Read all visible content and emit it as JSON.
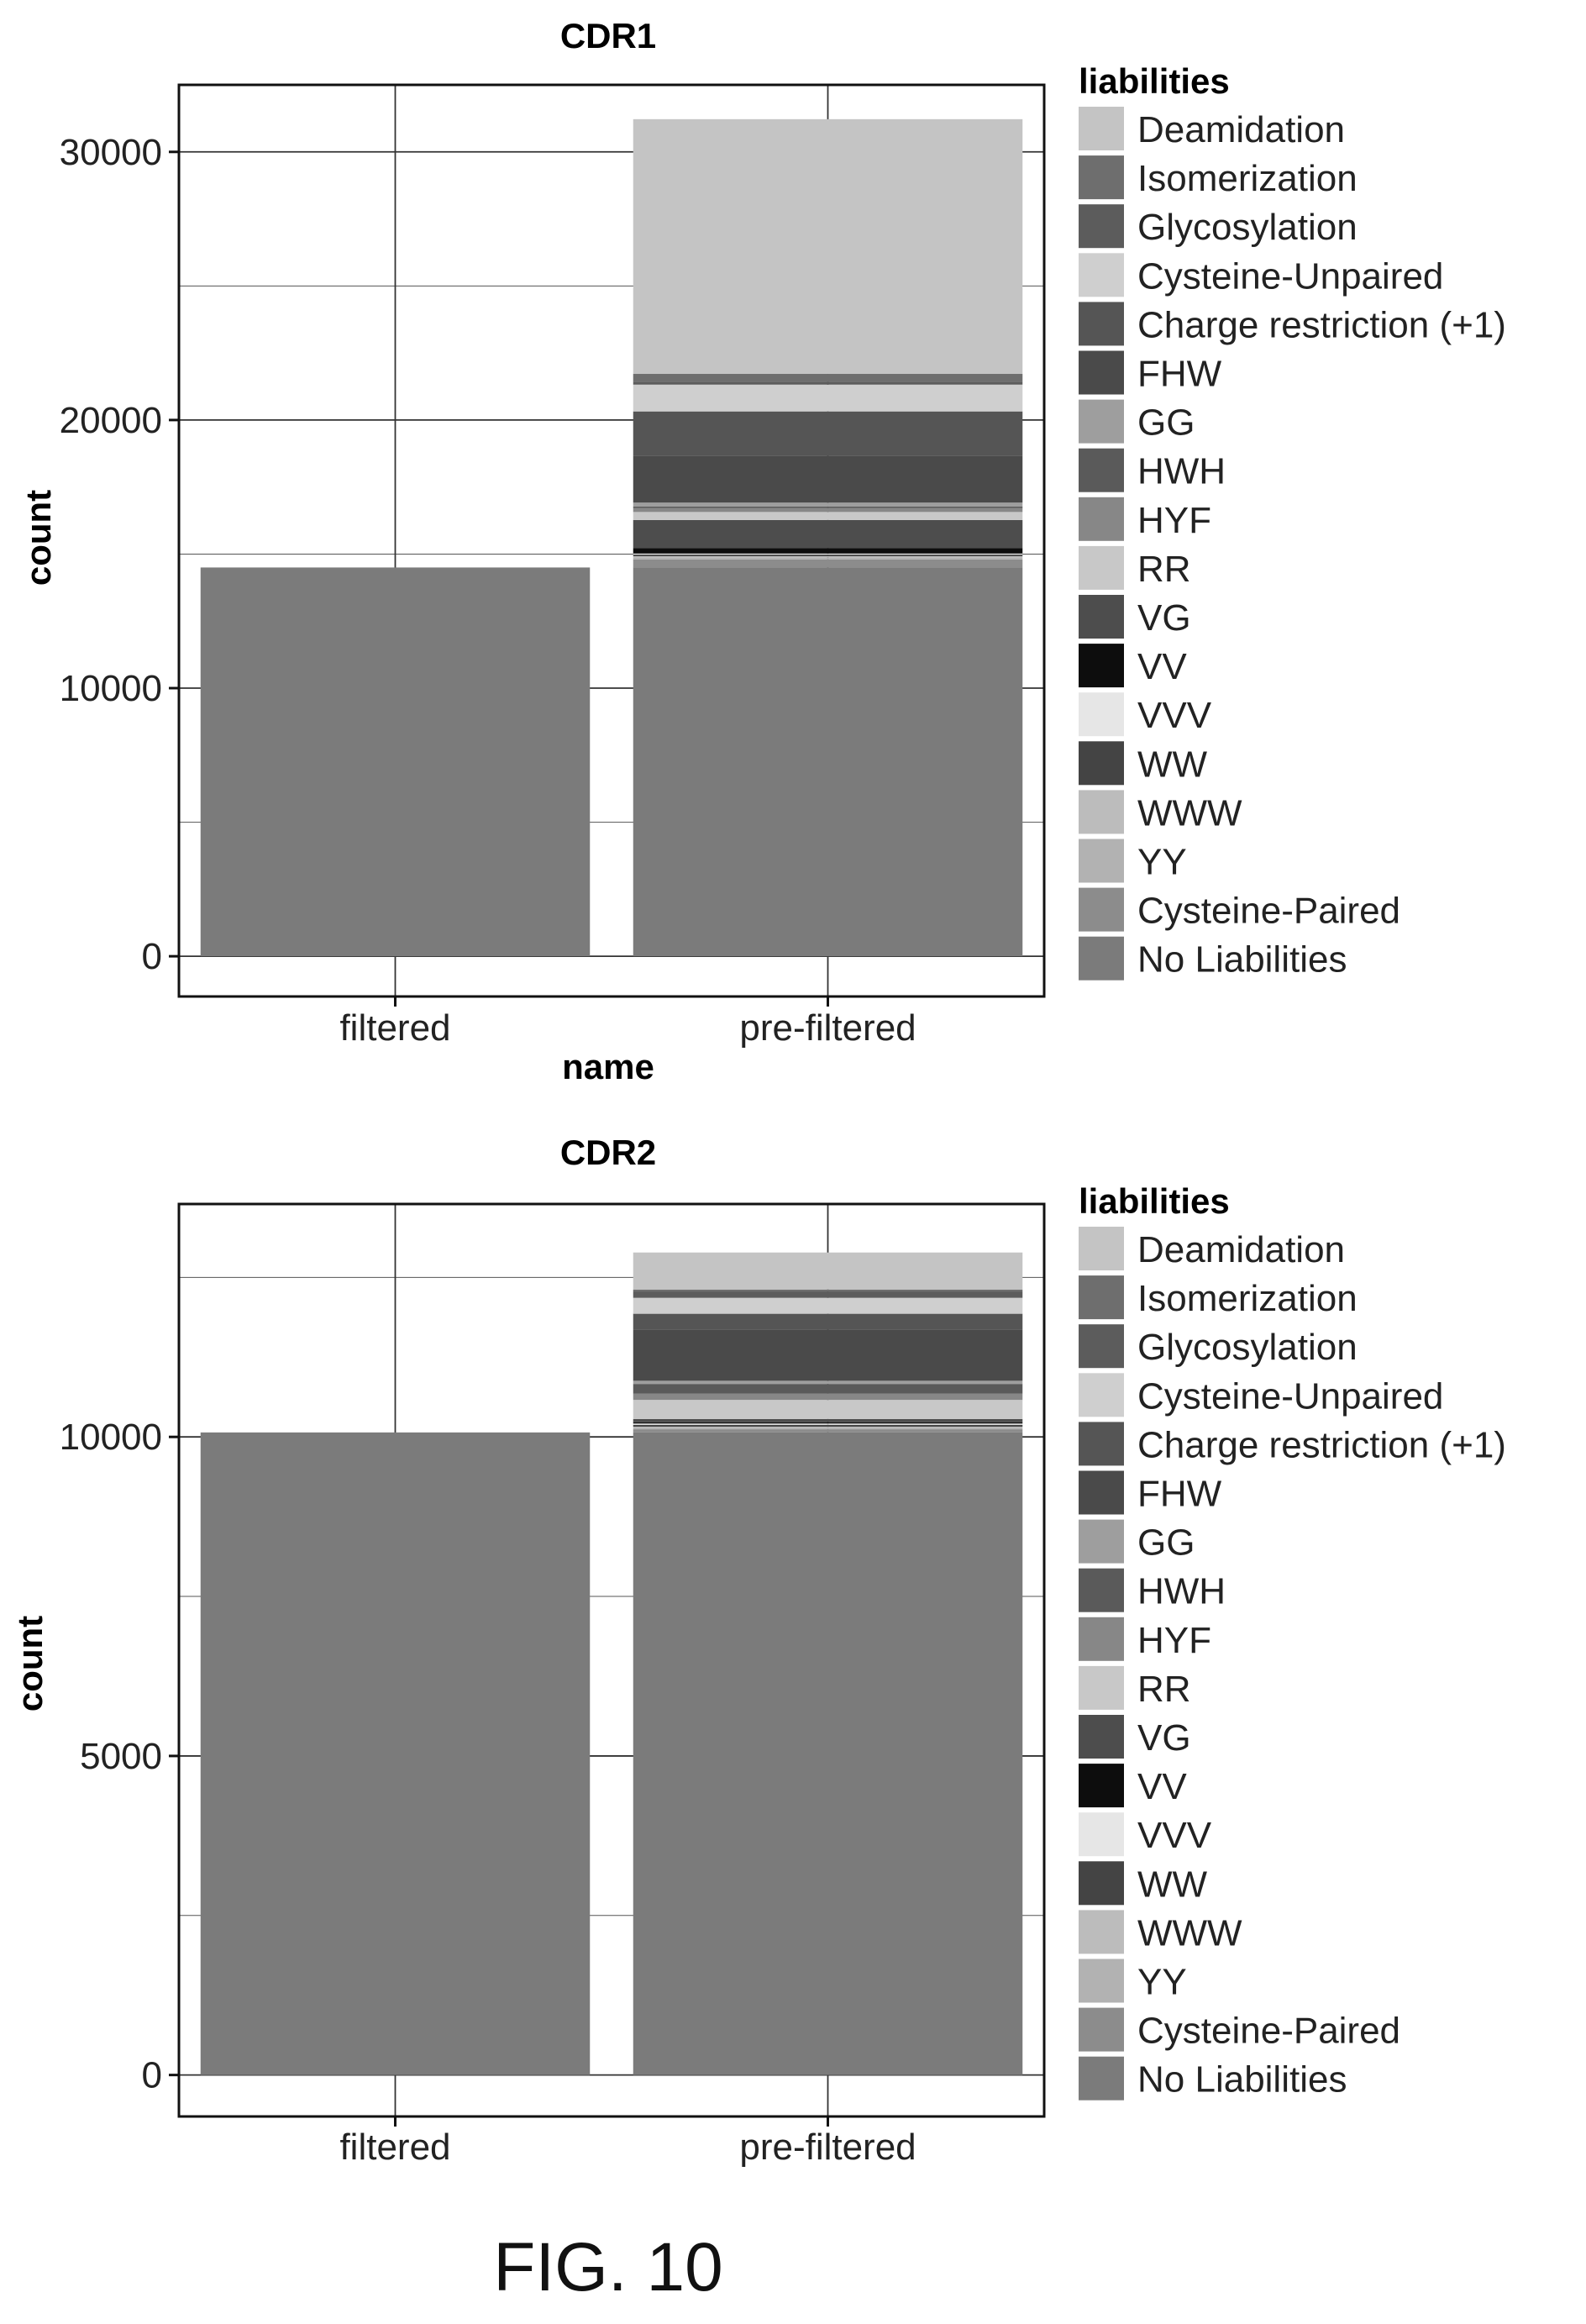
{
  "figure_caption": "FIG. 10",
  "liabilities_colors": {
    "Deamidation": "#c4c4c4",
    "Isomerization": "#6e6e6e",
    "Glycosylation": "#5c5c5c",
    "Cysteine-Unpaired": "#cfcfcf",
    "Charge restriction (+1)": "#555555",
    "FHW": "#4a4a4a",
    "GG": "#9e9e9e",
    "HWH": "#5a5a5a",
    "HYF": "#878787",
    "RR": "#c8c8c8",
    "VG": "#4d4d4d",
    "VV": "#0d0d0d",
    "VVV": "#e6e6e6",
    "WW": "#444444",
    "WWW": "#bcbcbc",
    "YY": "#b2b2b2",
    "Cysteine-Paired": "#8c8c8c",
    "No Liabilities": "#7b7b7b"
  },
  "chart_data": [
    {
      "type": "bar",
      "stacked": true,
      "title": "CDR1",
      "xlabel": "name",
      "ylabel": "count",
      "categories": [
        "filtered",
        "pre-filtered"
      ],
      "ylim": [
        -1500,
        32500
      ],
      "yticks": [
        0,
        10000,
        20000,
        30000
      ],
      "ytick_labels": [
        "0",
        "10000",
        "20000",
        "30000"
      ],
      "grid": true,
      "legend_title": "liabilities",
      "legend_position": "right",
      "series": [
        {
          "name": "No Liabilities",
          "values": [
            14500,
            14500
          ]
        },
        {
          "name": "Cysteine-Paired",
          "values": [
            0,
            300
          ]
        },
        {
          "name": "YY",
          "values": [
            0,
            80
          ]
        },
        {
          "name": "WWW",
          "values": [
            0,
            40
          ]
        },
        {
          "name": "WW",
          "values": [
            0,
            60
          ]
        },
        {
          "name": "VVV",
          "values": [
            0,
            40
          ]
        },
        {
          "name": "VV",
          "values": [
            0,
            200
          ]
        },
        {
          "name": "VG",
          "values": [
            0,
            1050
          ]
        },
        {
          "name": "RR",
          "values": [
            0,
            300
          ]
        },
        {
          "name": "HYF",
          "values": [
            0,
            150
          ]
        },
        {
          "name": "HWH",
          "values": [
            0,
            50
          ]
        },
        {
          "name": "GG",
          "values": [
            0,
            150
          ]
        },
        {
          "name": "FHW",
          "values": [
            0,
            1750
          ]
        },
        {
          "name": "Charge restriction (+1)",
          "values": [
            0,
            1650
          ]
        },
        {
          "name": "Cysteine-Unpaired",
          "values": [
            0,
            1000
          ]
        },
        {
          "name": "Glycosylation",
          "values": [
            0,
            100
          ]
        },
        {
          "name": "Isomerization",
          "values": [
            0,
            300
          ]
        },
        {
          "name": "Deamidation",
          "values": [
            0,
            9500
          ]
        }
      ]
    },
    {
      "type": "bar",
      "stacked": true,
      "title": "CDR2",
      "xlabel": "",
      "ylabel": "count",
      "categories": [
        "filtered",
        "pre-filtered"
      ],
      "ylim": [
        -650,
        13650
      ],
      "yticks": [
        0,
        5000,
        10000
      ],
      "ytick_labels": [
        "0",
        "5000",
        "10000"
      ],
      "grid": true,
      "legend_title": "liabilities",
      "legend_position": "right",
      "series": [
        {
          "name": "No Liabilities",
          "values": [
            10070,
            10070
          ]
        },
        {
          "name": "Cysteine-Paired",
          "values": [
            0,
            50
          ]
        },
        {
          "name": "YY",
          "values": [
            0,
            20
          ]
        },
        {
          "name": "WWW",
          "values": [
            0,
            20
          ]
        },
        {
          "name": "WW",
          "values": [
            0,
            30
          ]
        },
        {
          "name": "VVV",
          "values": [
            0,
            20
          ]
        },
        {
          "name": "VV",
          "values": [
            0,
            20
          ]
        },
        {
          "name": "VG",
          "values": [
            0,
            50
          ]
        },
        {
          "name": "RR",
          "values": [
            0,
            300
          ]
        },
        {
          "name": "HYF",
          "values": [
            0,
            100
          ]
        },
        {
          "name": "HWH",
          "values": [
            0,
            150
          ]
        },
        {
          "name": "GG",
          "values": [
            0,
            50
          ]
        },
        {
          "name": "FHW",
          "values": [
            0,
            800
          ]
        },
        {
          "name": "Charge restriction (+1)",
          "values": [
            0,
            250
          ]
        },
        {
          "name": "Cysteine-Unpaired",
          "values": [
            0,
            250
          ]
        },
        {
          "name": "Glycosylation",
          "values": [
            0,
            100
          ]
        },
        {
          "name": "Isomerization",
          "values": [
            0,
            30
          ]
        },
        {
          "name": "Deamidation",
          "values": [
            0,
            580
          ]
        }
      ]
    }
  ]
}
